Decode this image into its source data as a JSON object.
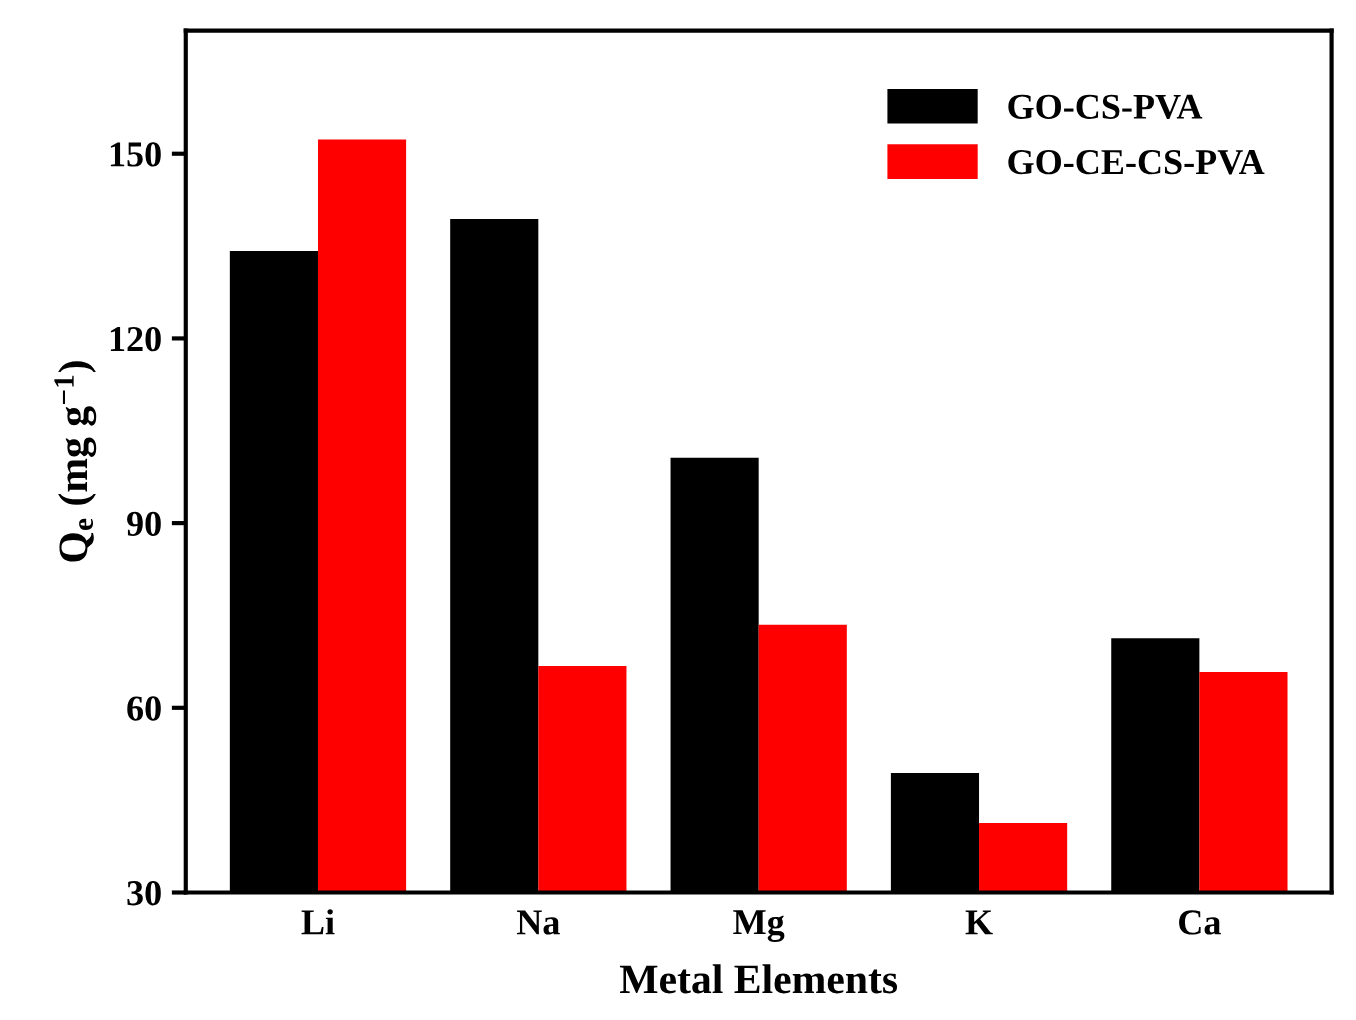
{
  "chart_data": {
    "type": "bar",
    "xlabel": "Metal Elements",
    "ylabel": "Q$_{e}$ (mg g$^{−1}$)",
    "categories": [
      "Li",
      "Na",
      "Mg",
      "K",
      "Ca"
    ],
    "series": [
      {
        "name": "GO-CS-PVA",
        "color": "#000000",
        "values": [
          134.2,
          139.4,
          100.6,
          49.4,
          71.3
        ]
      },
      {
        "name": "GO-CE-CS-PVA",
        "color": "#ff0000",
        "values": [
          152.3,
          66.8,
          73.5,
          41.3,
          65.8
        ]
      }
    ],
    "ylim": [
      30,
      170
    ],
    "yticks": [
      30,
      60,
      90,
      120,
      150
    ],
    "grid": false,
    "legend": "top right"
  }
}
